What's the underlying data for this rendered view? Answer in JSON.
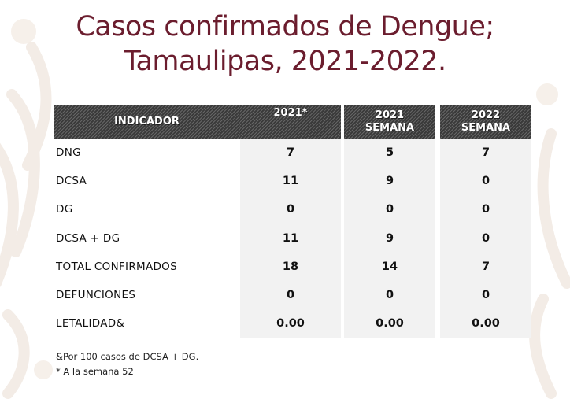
{
  "title": {
    "line1": "Casos confirmados de Dengue;",
    "line2": "Tamaulipas, 2021-2022."
  },
  "table": {
    "headers": {
      "indicator": "INDICADOR",
      "col1": [
        "2021*"
      ],
      "col2": [
        "2021",
        "SEMANA"
      ],
      "col3": [
        "2022",
        "SEMANA"
      ]
    },
    "rows": [
      {
        "label": "DNG",
        "values": [
          "7",
          "5",
          "7"
        ]
      },
      {
        "label": "DCSA",
        "values": [
          "11",
          "9",
          "0"
        ]
      },
      {
        "label": "DG",
        "values": [
          "0",
          "0",
          "0"
        ]
      },
      {
        "label": "DCSA + DG",
        "values": [
          "11",
          "9",
          "0"
        ]
      },
      {
        "label": "TOTAL CONFIRMADOS",
        "values": [
          "18",
          "14",
          "7"
        ]
      },
      {
        "label": "DEFUNCIONES",
        "values": [
          "0",
          "0",
          "0"
        ]
      },
      {
        "label": "LETALIDAD&",
        "values": [
          "0.00",
          "0.00",
          "0.00"
        ]
      }
    ]
  },
  "footnotes": [
    "&Por 100 casos de DCSA + DG.",
    "* A la semana 52"
  ],
  "colors": {
    "title": "#6b1d2e",
    "header_bg": "#3a3a3a",
    "value_bg": "#f2f2f2"
  }
}
